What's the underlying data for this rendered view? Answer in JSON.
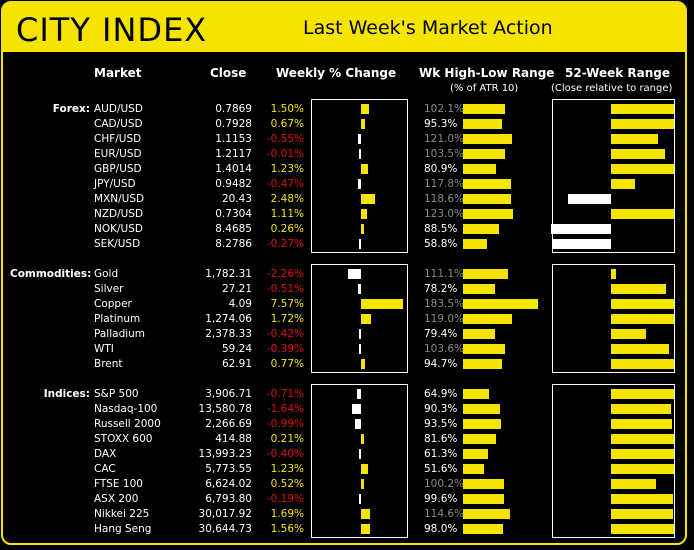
{
  "header": {
    "logo": "CITY INDEX",
    "title": "Last Week's Market Action"
  },
  "columns": {
    "market": "Market",
    "close": "Close",
    "weekly": "Weekly % Change",
    "wk_range": "Wk High-Low Range",
    "wk_range_sub": "(% of ATR 10)",
    "range52": "52-Week Range",
    "range52_sub": "(Close relative to range)"
  },
  "colors": {
    "positive": "#f5e400",
    "negative": "#e01010",
    "accent": "#f5e400",
    "background": "#000000"
  },
  "groups": [
    {
      "label": "Forex:",
      "rows": [
        {
          "name": "AUD/USD",
          "close": "0.7869",
          "chg": "1.50%",
          "chg_v": 1.5,
          "atr": "102.1%",
          "atr_v": 102.1,
          "pos52": 1.0
        },
        {
          "name": "CAD/USD",
          "close": "0.7928",
          "chg": "0.67%",
          "chg_v": 0.67,
          "atr": "95.3%",
          "atr_v": 95.3,
          "pos52": 1.0
        },
        {
          "name": "CHF/USD",
          "close": "1.1153",
          "chg": "-0.55%",
          "chg_v": -0.55,
          "atr": "121.0%",
          "atr_v": 121.0,
          "pos52": 0.75
        },
        {
          "name": "EUR/USD",
          "close": "1.2117",
          "chg": "-0.01%",
          "chg_v": -0.01,
          "atr": "103.5%",
          "atr_v": 103.5,
          "pos52": 0.85
        },
        {
          "name": "GBP/USD",
          "close": "1.4014",
          "chg": "1.23%",
          "chg_v": 1.23,
          "atr": "80.9%",
          "atr_v": 80.9,
          "pos52": 1.0
        },
        {
          "name": "JPY/USD",
          "close": "0.9482",
          "chg": "-0.47%",
          "chg_v": -0.47,
          "atr": "117.8%",
          "atr_v": 117.8,
          "pos52": 0.38
        },
        {
          "name": "MXN/USD",
          "close": "20.43",
          "chg": "2.48%",
          "chg_v": 2.48,
          "atr": "118.6%",
          "atr_v": 118.6,
          "pos52": -0.68
        },
        {
          "name": "NZD/USD",
          "close": "0.7304",
          "chg": "1.11%",
          "chg_v": 1.11,
          "atr": "123.0%",
          "atr_v": 123.0,
          "pos52": 1.0
        },
        {
          "name": "NOK/USD",
          "close": "8.4685",
          "chg": "0.26%",
          "chg_v": 0.26,
          "atr": "88.5%",
          "atr_v": 88.5,
          "pos52": -0.95
        },
        {
          "name": "SEK/USD",
          "close": "8.2786",
          "chg": "-0.27%",
          "chg_v": -0.27,
          "atr": "58.8%",
          "atr_v": 58.8,
          "pos52": -0.92
        }
      ]
    },
    {
      "label": "Commodities:",
      "rows": [
        {
          "name": "Gold",
          "close": "1,782.31",
          "chg": "-2.26%",
          "chg_v": -2.26,
          "atr": "111.1%",
          "atr_v": 111.1,
          "pos52": 0.05
        },
        {
          "name": "Silver",
          "close": "27.21",
          "chg": "-0.51%",
          "chg_v": -0.51,
          "atr": "78.2%",
          "atr_v": 78.2,
          "pos52": 0.88
        },
        {
          "name": "Copper",
          "close": "4.09",
          "chg": "7.57%",
          "chg_v": 7.57,
          "atr": "183.5%",
          "atr_v": 183.5,
          "pos52": 1.0
        },
        {
          "name": "Platinum",
          "close": "1,274.06",
          "chg": "1.72%",
          "chg_v": 1.72,
          "atr": "119.0%",
          "atr_v": 119.0,
          "pos52": 1.0
        },
        {
          "name": "Palladium",
          "close": "2,378.33",
          "chg": "-0.42%",
          "chg_v": -0.42,
          "atr": "79.4%",
          "atr_v": 79.4,
          "pos52": 0.55
        },
        {
          "name": "WTI",
          "close": "59.24",
          "chg": "-0.39%",
          "chg_v": -0.39,
          "atr": "103.6%",
          "atr_v": 103.6,
          "pos52": 0.92
        },
        {
          "name": "Brent",
          "close": "62.91",
          "chg": "0.77%",
          "chg_v": 0.77,
          "atr": "94.7%",
          "atr_v": 94.7,
          "pos52": 1.0
        }
      ]
    },
    {
      "label": "Indices:",
      "rows": [
        {
          "name": "S&P 500",
          "close": "3,906.71",
          "chg": "-0.71%",
          "chg_v": -0.71,
          "atr": "64.9%",
          "atr_v": 64.9,
          "pos52": 1.0
        },
        {
          "name": "Nasdaq-100",
          "close": "13,580.78",
          "chg": "-1.64%",
          "chg_v": -1.64,
          "atr": "90.3%",
          "atr_v": 90.3,
          "pos52": 0.95
        },
        {
          "name": "Russell 2000",
          "close": "2,266.69",
          "chg": "-0.99%",
          "chg_v": -0.99,
          "atr": "93.5%",
          "atr_v": 93.5,
          "pos52": 0.97
        },
        {
          "name": "STOXX 600",
          "close": "414.88",
          "chg": "0.21%",
          "chg_v": 0.21,
          "atr": "81.6%",
          "atr_v": 81.6,
          "pos52": 1.0
        },
        {
          "name": "DAX",
          "close": "13,993.23",
          "chg": "-0.40%",
          "chg_v": -0.4,
          "atr": "61.3%",
          "atr_v": 61.3,
          "pos52": 1.0
        },
        {
          "name": "CAC",
          "close": "5,773.55",
          "chg": "1.23%",
          "chg_v": 1.23,
          "atr": "51.6%",
          "atr_v": 51.6,
          "pos52": 1.0
        },
        {
          "name": "FTSE 100",
          "close": "6,624.02",
          "chg": "0.52%",
          "chg_v": 0.52,
          "atr": "100.2%",
          "atr_v": 100.2,
          "pos52": 0.72
        },
        {
          "name": "ASX 200",
          "close": "6,793.80",
          "chg": "-0.19%",
          "chg_v": -0.19,
          "atr": "99.6%",
          "atr_v": 99.6,
          "pos52": 0.98
        },
        {
          "name": "Nikkei 225",
          "close": "30,017.92",
          "chg": "1.69%",
          "chg_v": 1.69,
          "atr": "114.6%",
          "atr_v": 114.6,
          "pos52": 0.98
        },
        {
          "name": "Hang Seng",
          "close": "30,644.73",
          "chg": "1.56%",
          "chg_v": 1.56,
          "atr": "98.0%",
          "atr_v": 98.0,
          "pos52": 1.0
        }
      ]
    }
  ]
}
